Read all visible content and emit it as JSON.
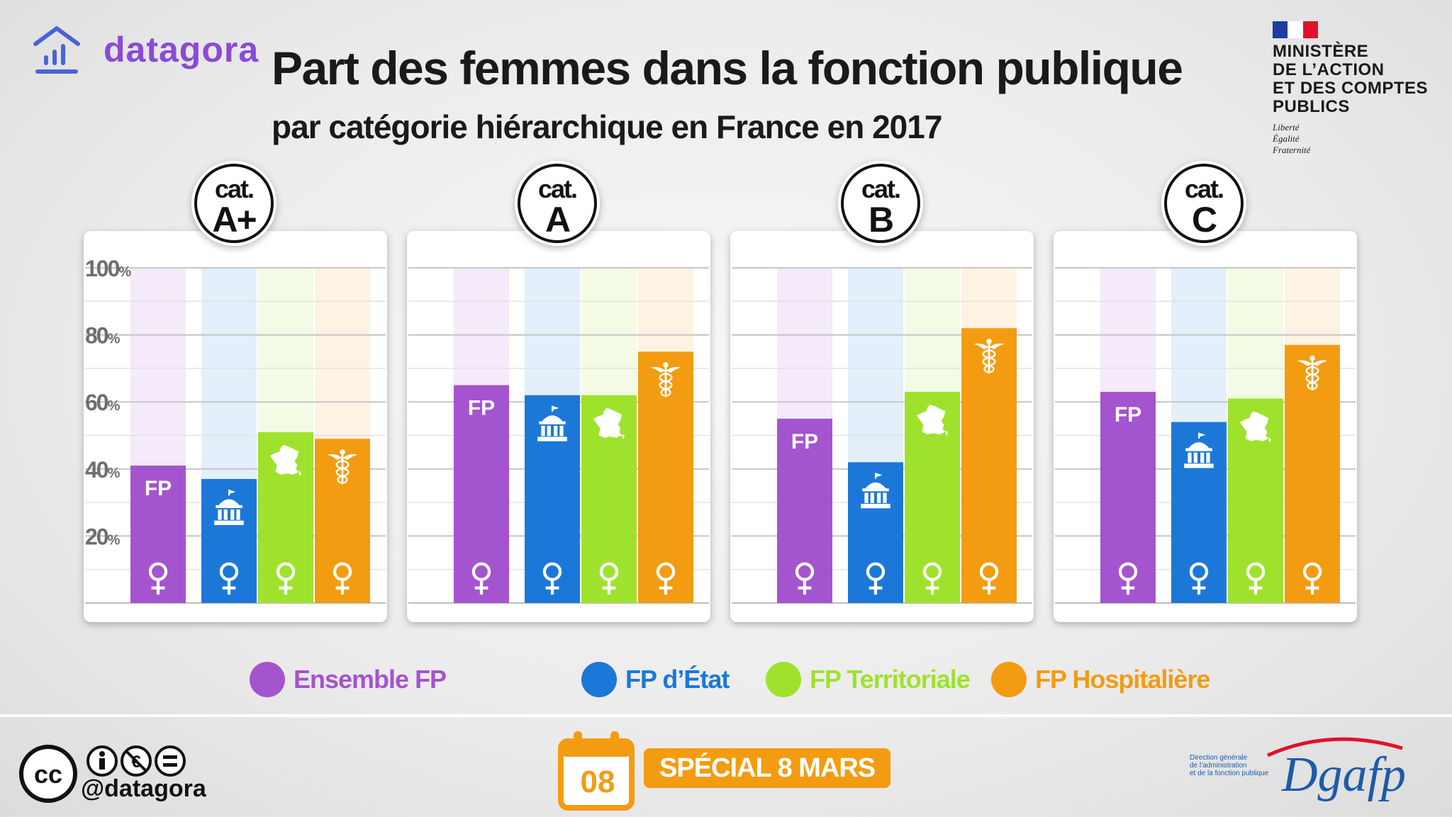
{
  "brand": {
    "name": "datagora",
    "handle": "@datagora"
  },
  "title": "Part des femmes dans la fonction publique",
  "subtitle": "par catégorie hiérarchique en France en 2017",
  "ministry": {
    "lines": [
      "MINISTÈRE",
      "DE L’ACTION",
      "ET DES COMPTES",
      "PUBLICS"
    ],
    "motto": [
      "Liberté",
      "Égalité",
      "Fraternité"
    ]
  },
  "colors": {
    "ensemble": "#a454cf",
    "etat": "#1c78d8",
    "territoriale": "#9fe22d",
    "hospitaliere": "#f39c12"
  },
  "legend": [
    {
      "key": "ensemble",
      "label": "Ensemble FP"
    },
    {
      "key": "etat",
      "label": "FP d’État"
    },
    {
      "key": "territoriale",
      "label": "FP Territoriale"
    },
    {
      "key": "hospitaliere",
      "label": "FP Hospitalière"
    }
  ],
  "bar_label_fp": "FP",
  "cat_prefix": "cat.",
  "footer": {
    "day": "08",
    "badge": "SPÉCIAL 8 MARS",
    "dgafp_logo": "Dgafp",
    "dgafp_lines": [
      "Direction générale",
      "de l’administration",
      "et de la fonction publique"
    ]
  },
  "chart_data": {
    "type": "bar",
    "title": "Part des femmes dans la fonction publique",
    "subtitle": "par catégorie hiérarchique en France en 2017",
    "ylim": [
      0,
      100
    ],
    "yticks": [
      "100%",
      "80%",
      "60%",
      "40%",
      "20%"
    ],
    "ytick_values": [
      100,
      80,
      60,
      40,
      20
    ],
    "panels": [
      {
        "label": "A+",
        "values": {
          "ensemble": 41,
          "etat": 37,
          "territoriale": 51,
          "hospitaliere": 49
        }
      },
      {
        "label": "A",
        "values": {
          "ensemble": 65,
          "etat": 62,
          "territoriale": 62,
          "hospitaliere": 75
        }
      },
      {
        "label": "B",
        "values": {
          "ensemble": 55,
          "etat": 42,
          "territoriale": 63,
          "hospitaliere": 82
        }
      },
      {
        "label": "C",
        "values": {
          "ensemble": 63,
          "etat": 54,
          "territoriale": 61,
          "hospitaliere": 77
        }
      }
    ],
    "series": [
      {
        "key": "ensemble",
        "name": "Ensemble FP"
      },
      {
        "key": "etat",
        "name": "FP d’État"
      },
      {
        "key": "territoriale",
        "name": "FP Territoriale"
      },
      {
        "key": "hospitaliere",
        "name": "FP Hospitalière"
      }
    ],
    "grid": true,
    "legend_position": "bottom"
  }
}
